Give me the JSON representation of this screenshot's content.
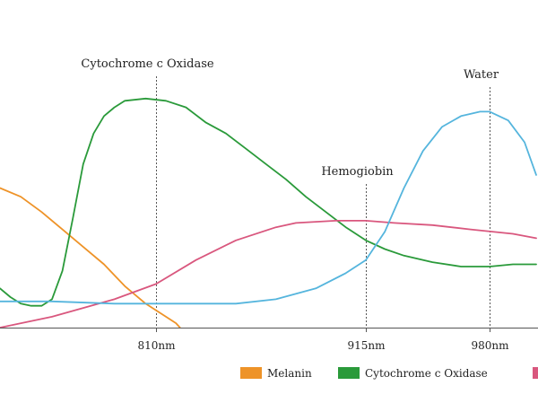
{
  "chart_data": {
    "type": "line",
    "title": "",
    "xlabel": "",
    "ylabel": "",
    "x_ticks": [
      "810nm",
      "915nm",
      "980nm"
    ],
    "grid": false,
    "legend_position": "bottom",
    "annotations": [
      {
        "label": "Cytochrome c Oxidase",
        "x": 810
      },
      {
        "label": "Hemogiobin",
        "x": 915
      },
      {
        "label": "Water",
        "x": 980
      }
    ],
    "series": [
      {
        "name": "Melanin",
        "color": "#ee9328",
        "points": [
          [
            735,
            0.64
          ],
          [
            745,
            0.6
          ],
          [
            755,
            0.53
          ],
          [
            765,
            0.45
          ],
          [
            775,
            0.37
          ],
          [
            785,
            0.29
          ],
          [
            795,
            0.19
          ],
          [
            805,
            0.11
          ],
          [
            815,
            0.05
          ],
          [
            820,
            0.02
          ],
          [
            822,
            0.0
          ]
        ]
      },
      {
        "name": "Cytochrome c Oxidase",
        "color": "#2a9a3a",
        "points": [
          [
            735,
            0.18
          ],
          [
            740,
            0.14
          ],
          [
            745,
            0.11
          ],
          [
            750,
            0.1
          ],
          [
            755,
            0.1
          ],
          [
            760,
            0.13
          ],
          [
            765,
            0.26
          ],
          [
            770,
            0.5
          ],
          [
            775,
            0.75
          ],
          [
            780,
            0.89
          ],
          [
            785,
            0.97
          ],
          [
            790,
            1.01
          ],
          [
            795,
            1.04
          ],
          [
            805,
            1.05
          ],
          [
            815,
            1.04
          ],
          [
            825,
            1.01
          ],
          [
            835,
            0.94
          ],
          [
            845,
            0.89
          ],
          [
            855,
            0.82
          ],
          [
            865,
            0.75
          ],
          [
            875,
            0.68
          ],
          [
            885,
            0.6
          ],
          [
            895,
            0.53
          ],
          [
            905,
            0.46
          ],
          [
            915,
            0.4
          ],
          [
            925,
            0.36
          ],
          [
            935,
            0.33
          ],
          [
            950,
            0.3
          ],
          [
            965,
            0.28
          ],
          [
            980,
            0.28
          ],
          [
            990,
            0.29
          ],
          [
            1000,
            0.29
          ]
        ]
      },
      {
        "name": "Hemogiobin",
        "color": "#d9577e",
        "points": [
          [
            735,
            0.0
          ],
          [
            760,
            0.05
          ],
          [
            790,
            0.13
          ],
          [
            810,
            0.2
          ],
          [
            830,
            0.31
          ],
          [
            850,
            0.4
          ],
          [
            870,
            0.46
          ],
          [
            880,
            0.48
          ],
          [
            900,
            0.49
          ],
          [
            915,
            0.49
          ],
          [
            930,
            0.48
          ],
          [
            950,
            0.47
          ],
          [
            970,
            0.45
          ],
          [
            990,
            0.43
          ],
          [
            1000,
            0.41
          ]
        ]
      },
      {
        "name": "Water",
        "color": "#55b5dd",
        "points": [
          [
            735,
            0.12
          ],
          [
            760,
            0.12
          ],
          [
            790,
            0.11
          ],
          [
            810,
            0.11
          ],
          [
            830,
            0.11
          ],
          [
            850,
            0.11
          ],
          [
            870,
            0.13
          ],
          [
            890,
            0.18
          ],
          [
            905,
            0.25
          ],
          [
            915,
            0.31
          ],
          [
            925,
            0.44
          ],
          [
            935,
            0.64
          ],
          [
            945,
            0.81
          ],
          [
            955,
            0.92
          ],
          [
            965,
            0.97
          ],
          [
            975,
            0.99
          ],
          [
            980,
            0.99
          ],
          [
            988,
            0.95
          ],
          [
            995,
            0.85
          ],
          [
            1000,
            0.7
          ]
        ]
      }
    ]
  }
}
